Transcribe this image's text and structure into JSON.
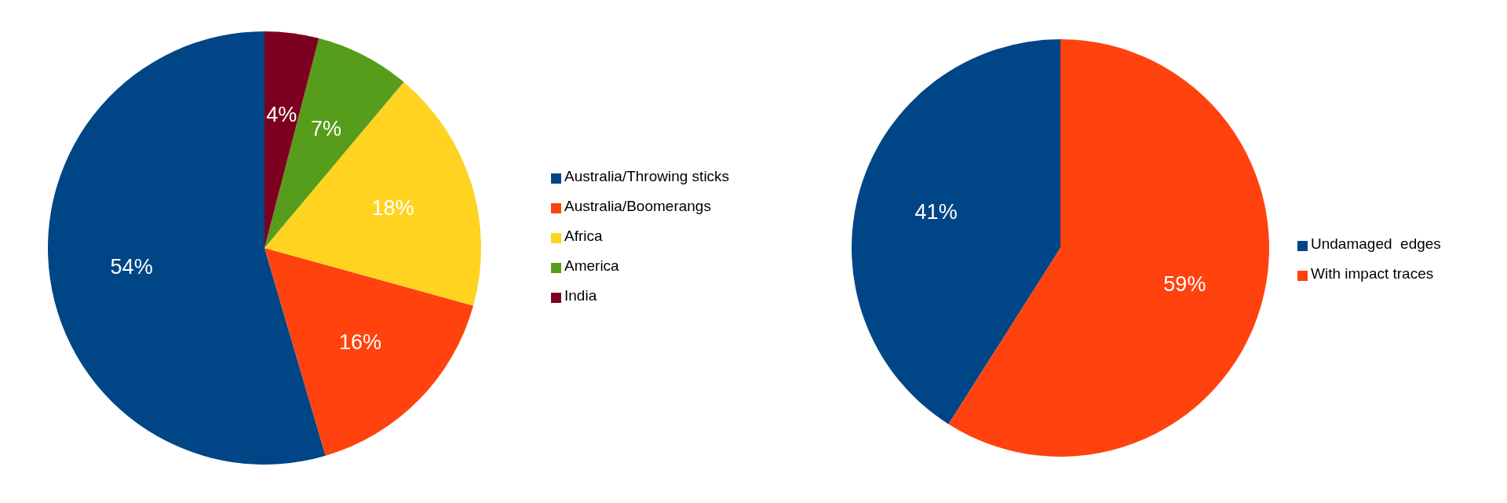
{
  "chart_data": [
    {
      "type": "pie",
      "categories": [
        "Australia/Throwing sticks",
        "Australia/Boomerangs",
        "Africa",
        "America",
        "India"
      ],
      "values": [
        54,
        16,
        18,
        7,
        4
      ],
      "colors": [
        "#004586",
        "#ff420e",
        "#ffd320",
        "#579d1c",
        "#7e0021"
      ],
      "value_labels": [
        "54%",
        "16%",
        "18%",
        "7%",
        "4%"
      ],
      "legend": "right"
    },
    {
      "type": "pie",
      "categories": [
        "Undamaged  edges",
        "With impact traces"
      ],
      "values": [
        41,
        59
      ],
      "colors": [
        "#004586",
        "#ff420e"
      ],
      "value_labels": [
        "41%",
        "59%"
      ],
      "legend": "right"
    }
  ]
}
